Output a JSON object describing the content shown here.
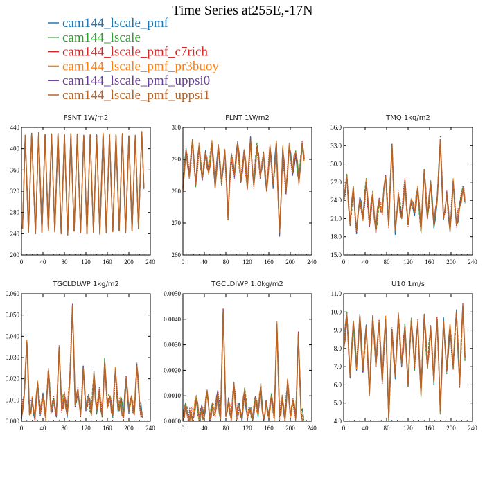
{
  "title": "Time Series at255E,-17N",
  "colors": {
    "cam144_lscale_pmf": "#1f77b4",
    "cam144_lscale": "#2ca02c",
    "cam144_lscale_pmf_c7rich": "#d62728",
    "cam144_lscale_pmf_pr3buoy": "#ff7f0e",
    "cam144_lscale_pmf_uppsi0": "#6a3d9a",
    "cam144_lscale_pmf_uppsi1": "#b5652a"
  },
  "legend": [
    {
      "name": "cam144_lscale_pmf",
      "color": "#1f77b4"
    },
    {
      "name": "cam144_lscale",
      "color": "#2ca02c"
    },
    {
      "name": "cam144_lscale_pmf_c7rich",
      "color": "#d62728"
    },
    {
      "name": "cam144_lscale_pmf_pr3buoy",
      "color": "#ff7f0e"
    },
    {
      "name": "cam144_lscale_pmf_uppsi0",
      "color": "#6a3d9a"
    },
    {
      "name": "cam144_lscale_pmf_uppsi1",
      "color": "#b5652a"
    }
  ],
  "chart_data": [
    {
      "type": "line",
      "title": "FSNT   1W/m2",
      "xlim": [
        0,
        240
      ],
      "ylim": [
        200,
        440
      ],
      "xticks": [
        "0",
        "40",
        "80",
        "120",
        "160",
        "200",
        "240"
      ],
      "yticks": [
        "200",
        "240",
        "280",
        "320",
        "360",
        "400",
        "440"
      ],
      "series_note": "6 overlapping runs; approximate extrema",
      "x": [
        2,
        7,
        13,
        19,
        26,
        32,
        38,
        44,
        50,
        56,
        62,
        68,
        74,
        80,
        86,
        92,
        98,
        104,
        110,
        116,
        122,
        128,
        134,
        140,
        146,
        152,
        158,
        164,
        170,
        176,
        182,
        188,
        194,
        200,
        206,
        212,
        218,
        224,
        228
      ],
      "series": [
        {
          "name": "cam144_lscale_pmf_uppsi1",
          "values": [
            250,
            425,
            243,
            428,
            240,
            430,
            243,
            426,
            246,
            427,
            244,
            428,
            240,
            426,
            238,
            428,
            245,
            427,
            242,
            425,
            240,
            426,
            243,
            425,
            240,
            428,
            242,
            426,
            244,
            425,
            246,
            428,
            242,
            423,
            245,
            425,
            250,
            432,
            325
          ]
        }
      ]
    },
    {
      "type": "line",
      "title": "FLNT   1W/m2",
      "xlim": [
        0,
        240
      ],
      "ylim": [
        260,
        300
      ],
      "xticks": [
        "0",
        "40",
        "80",
        "120",
        "160",
        "200",
        "240"
      ],
      "yticks": [
        "260",
        "270",
        "280",
        "290",
        "300"
      ],
      "x": [
        0,
        6,
        12,
        18,
        24,
        30,
        36,
        42,
        48,
        54,
        60,
        66,
        72,
        78,
        84,
        90,
        96,
        102,
        108,
        114,
        120,
        126,
        132,
        138,
        144,
        150,
        156,
        162,
        168,
        174,
        180,
        186,
        192,
        198,
        204,
        210,
        216,
        222,
        226
      ],
      "series": [
        {
          "name": "cam144_lscale_pmf_uppsi1",
          "values": [
            281,
            293,
            285,
            296,
            282,
            294,
            284,
            292,
            286,
            295,
            281,
            294,
            283,
            293,
            272,
            291,
            285,
            295,
            283,
            293,
            281,
            296,
            282,
            294,
            285,
            292,
            280,
            294,
            282,
            295,
            267,
            293,
            280,
            294,
            286,
            292,
            283,
            295,
            290
          ]
        }
      ]
    },
    {
      "type": "line",
      "title": "TMQ   1kg/m2",
      "xlim": [
        0,
        240
      ],
      "ylim": [
        15,
        36
      ],
      "xticks": [
        "0",
        "40",
        "80",
        "120",
        "160",
        "200",
        "240"
      ],
      "yticks": [
        "15.0",
        "18.0",
        "21.0",
        "24.0",
        "27.0",
        "30.0",
        "33.0",
        "36.0"
      ],
      "x": [
        0,
        6,
        12,
        18,
        24,
        30,
        36,
        42,
        48,
        54,
        60,
        66,
        72,
        78,
        84,
        90,
        96,
        102,
        108,
        114,
        120,
        126,
        132,
        138,
        144,
        150,
        156,
        162,
        168,
        174,
        180,
        186,
        192,
        198,
        204,
        210,
        216,
        222,
        226
      ],
      "series": [
        {
          "name": "cam144_lscale_pmf_uppsi1",
          "values": [
            24,
            28,
            20,
            26,
            19,
            24,
            21,
            27,
            20,
            25,
            19,
            24,
            22,
            28,
            20,
            33,
            19,
            25,
            21,
            27,
            20,
            24,
            22,
            26,
            19,
            29,
            21,
            27,
            20,
            24,
            34,
            21,
            25,
            19,
            27,
            20,
            23,
            26,
            24
          ]
        }
      ]
    },
    {
      "type": "line",
      "title": "TGCLDLWP   1kg/m2",
      "xlim": [
        0,
        240
      ],
      "ylim": [
        0,
        0.06
      ],
      "xticks": [
        "0",
        "40",
        "80",
        "120",
        "160",
        "200",
        "240"
      ],
      "yticks": [
        "0.000",
        "0.010",
        "0.020",
        "0.030",
        "0.040",
        "0.050",
        "0.060"
      ],
      "x": [
        0,
        5,
        10,
        15,
        20,
        25,
        30,
        35,
        40,
        45,
        50,
        55,
        60,
        65,
        70,
        75,
        80,
        85,
        90,
        95,
        100,
        105,
        110,
        115,
        120,
        125,
        130,
        135,
        140,
        145,
        150,
        155,
        160,
        165,
        170,
        175,
        180,
        185,
        190,
        195,
        200,
        205,
        210,
        215,
        220,
        225
      ],
      "series": [
        {
          "name": "cam144_lscale_pmf_uppsi1",
          "values": [
            0.002,
            0.012,
            0.037,
            0.003,
            0.01,
            0.002,
            0.018,
            0.004,
            0.012,
            0.002,
            0.024,
            0.005,
            0.01,
            0.003,
            0.034,
            0.006,
            0.012,
            0.003,
            0.02,
            0.054,
            0.008,
            0.015,
            0.003,
            0.025,
            0.006,
            0.012,
            0.003,
            0.022,
            0.005,
            0.014,
            0.003,
            0.028,
            0.007,
            0.012,
            0.003,
            0.024,
            0.006,
            0.01,
            0.002,
            0.02,
            0.005,
            0.012,
            0.003,
            0.026,
            0.008,
            0.003
          ]
        }
      ]
    },
    {
      "type": "line",
      "title": "TGCLDIWP   1.0kg/m2",
      "xlim": [
        0,
        240
      ],
      "ylim": [
        0,
        0.005
      ],
      "xticks": [
        "0",
        "40",
        "80",
        "120",
        "160",
        "200",
        "240"
      ],
      "yticks": [
        "0.0000",
        "0.0010",
        "0.0020",
        "0.0030",
        "0.0040",
        "0.0050"
      ],
      "x": [
        0,
        5,
        10,
        15,
        20,
        25,
        30,
        35,
        40,
        45,
        50,
        55,
        60,
        65,
        70,
        75,
        80,
        85,
        90,
        95,
        100,
        105,
        110,
        115,
        120,
        125,
        130,
        135,
        140,
        145,
        150,
        155,
        160,
        165,
        170,
        175,
        180,
        185,
        190,
        195,
        200,
        205,
        210,
        215,
        220,
        225
      ],
      "series": [
        {
          "name": "cam144_lscale_pmf_uppsi1",
          "values": [
            0.0001,
            0.0006,
            0.0001,
            0.0004,
            0.0002,
            0.0009,
            0.0001,
            0.0005,
            0.0002,
            0.0012,
            0.0001,
            0.0006,
            0.0003,
            0.0011,
            0.0001,
            0.0043,
            0.0002,
            0.0008,
            0.0001,
            0.0015,
            0.0002,
            0.0006,
            0.0001,
            0.0012,
            0.0002,
            0.0005,
            0.0001,
            0.0009,
            0.0003,
            0.0014,
            0.0001,
            0.0008,
            0.0002,
            0.001,
            0.0001,
            0.0038,
            0.0002,
            0.0009,
            0.0001,
            0.0016,
            0.0002,
            0.0008,
            0.0001,
            0.0034,
            0.0003,
            0.0001
          ]
        }
      ]
    },
    {
      "type": "line",
      "title": "U10   1m/s",
      "xlim": [
        0,
        240
      ],
      "ylim": [
        4,
        11
      ],
      "xticks": [
        "0",
        "40",
        "80",
        "120",
        "160",
        "200",
        "240"
      ],
      "yticks": [
        "4.0",
        "5.0",
        "6.0",
        "7.0",
        "8.0",
        "9.0",
        "10.0",
        "11.0"
      ],
      "x": [
        0,
        6,
        12,
        18,
        24,
        30,
        36,
        42,
        48,
        54,
        60,
        66,
        72,
        78,
        84,
        90,
        96,
        102,
        108,
        114,
        120,
        126,
        132,
        138,
        144,
        150,
        156,
        162,
        168,
        174,
        180,
        186,
        192,
        198,
        204,
        210,
        216,
        222,
        226
      ],
      "series": [
        {
          "name": "cam144_lscale_pmf_uppsi1",
          "values": [
            8,
            9.8,
            6.5,
            9.5,
            7,
            9.8,
            6.8,
            9.2,
            5.5,
            9.7,
            7,
            9.4,
            6.2,
            9.6,
            4.2,
            9,
            6.5,
            9.8,
            7.2,
            9.2,
            6,
            9.5,
            7,
            9.4,
            5.5,
            9.8,
            7,
            9.2,
            6.2,
            9.6,
            4.5,
            9.5,
            6.8,
            9.2,
            7,
            10,
            6,
            10.3,
            7.5
          ]
        }
      ]
    }
  ]
}
